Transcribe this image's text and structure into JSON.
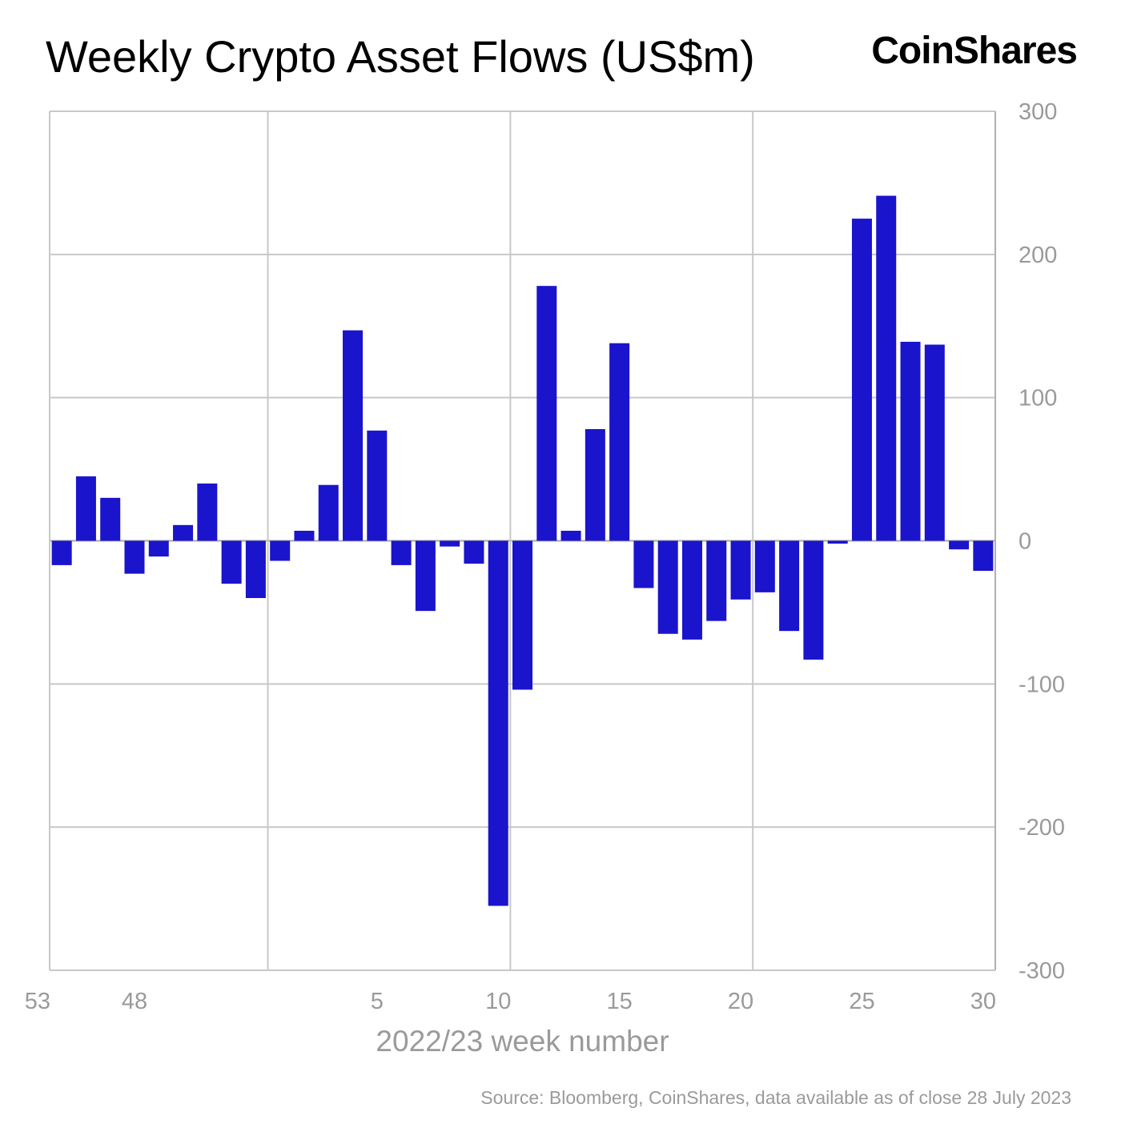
{
  "title": "Weekly Crypto Asset Flows (US$m)",
  "logo": "CoinShares",
  "source": "Source: Bloomberg, CoinShares, data available as of close 28 July 2023",
  "chart_data": {
    "type": "bar",
    "title": "Weekly Crypto Asset Flows (US$m)",
    "xlabel": "2022/23 week number",
    "ylabel": "",
    "ylim": [
      -300,
      300
    ],
    "yticks": [
      300,
      200,
      100,
      0,
      -100,
      -200,
      -300
    ],
    "y_axis_side": "right",
    "grid": true,
    "bar_color": "#1a14cc",
    "categories": [
      "45",
      "46",
      "47",
      "48",
      "49",
      "50",
      "51",
      "52",
      "53",
      "1",
      "2",
      "3",
      "4",
      "5",
      "6",
      "7",
      "8",
      "9",
      "10",
      "11",
      "12",
      "13",
      "14",
      "15",
      "16",
      "17",
      "18",
      "19",
      "20",
      "21",
      "22",
      "23",
      "24",
      "25",
      "26",
      "27",
      "28",
      "29",
      "30"
    ],
    "xtick_labels": [
      "48",
      "53",
      "5",
      "10",
      "15",
      "20",
      "25",
      "30"
    ],
    "values": [
      -17,
      45,
      30,
      -23,
      -11,
      11,
      40,
      -30,
      -40,
      -14,
      7,
      39,
      147,
      77,
      -17,
      -49,
      -4,
      -16,
      -255,
      -104,
      178,
      7,
      78,
      138,
      -33,
      -65,
      -69,
      -56,
      -41,
      -36,
      -63,
      -83,
      -2,
      225,
      241,
      139,
      137,
      -6,
      -21
    ]
  }
}
